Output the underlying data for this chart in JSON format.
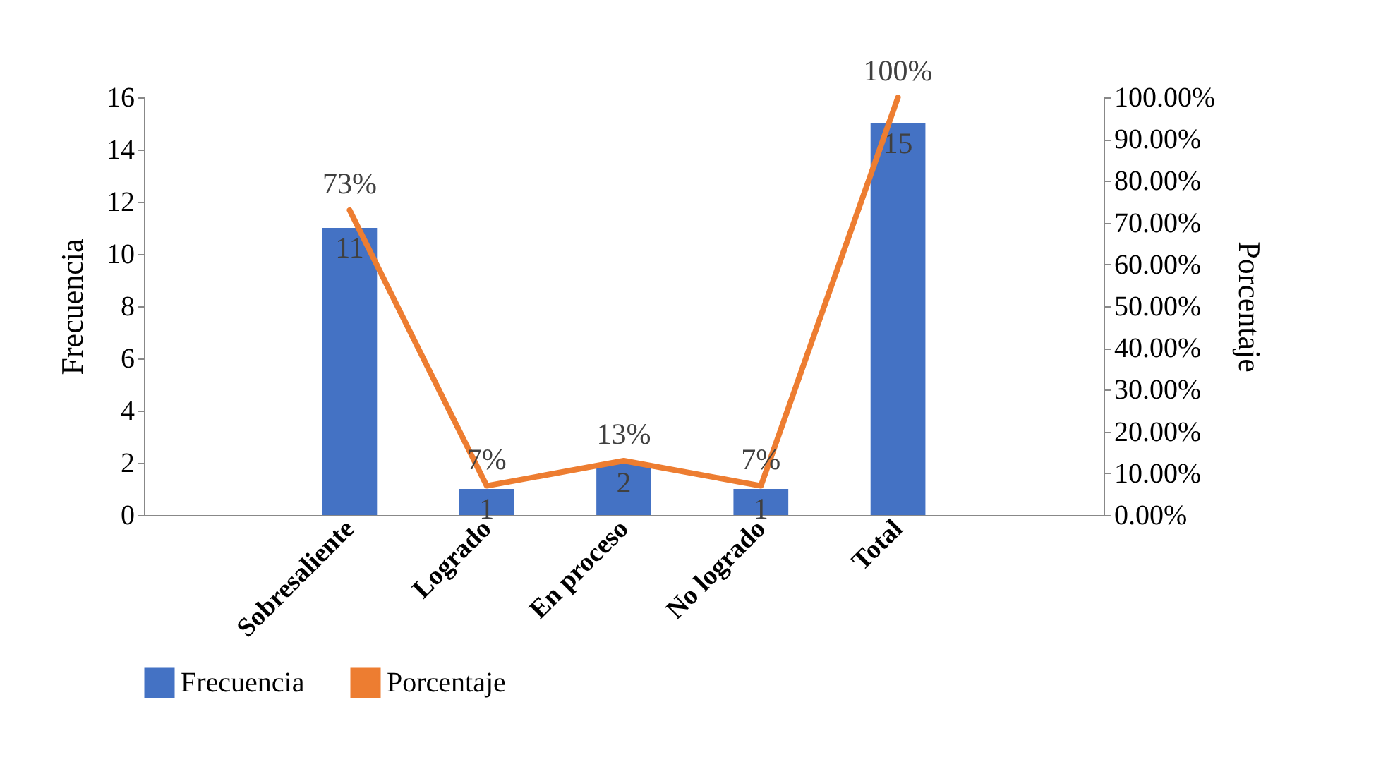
{
  "chart_data": {
    "type": "bar",
    "categories": [
      null,
      "Sobresaliente",
      "Logrado",
      "En proceso",
      "No logrado",
      "Total",
      null
    ],
    "ylabel": "Frecuencia",
    "y2label": "Porcentaje",
    "ylim": [
      0,
      16
    ],
    "yticks": [
      0,
      2,
      4,
      6,
      8,
      10,
      12,
      14,
      16
    ],
    "y2lim": [
      0,
      100
    ],
    "y2ticks": [
      {
        "value": 0,
        "label": "0.00%"
      },
      {
        "value": 10,
        "label": "10.00%"
      },
      {
        "value": 20,
        "label": "20.00%"
      },
      {
        "value": 30,
        "label": "30.00%"
      },
      {
        "value": 40,
        "label": "40.00%"
      },
      {
        "value": 50,
        "label": "50.00%"
      },
      {
        "value": 60,
        "label": "60.00%"
      },
      {
        "value": 70,
        "label": "70.00%"
      },
      {
        "value": 80,
        "label": "80.00%"
      },
      {
        "value": 90,
        "label": "90.00%"
      },
      {
        "value": 100,
        "label": "100.00%"
      }
    ],
    "series": [
      {
        "name": "Frecuencia",
        "color": "#4472c4",
        "values": [
          null,
          11,
          1,
          2,
          1,
          15,
          null
        ],
        "value_labels": [
          null,
          "11",
          "1",
          "2",
          "1",
          "15",
          null
        ]
      },
      {
        "name": "Porcentaje",
        "type": "line",
        "axis": "y2",
        "color": "#ed7d31",
        "values": [
          null,
          73,
          7,
          13,
          7,
          100,
          null
        ],
        "value_labels": [
          null,
          "73%",
          "7%",
          "13%",
          "7%",
          "100%",
          null
        ]
      }
    ],
    "legend": "bottom",
    "grid": false
  }
}
